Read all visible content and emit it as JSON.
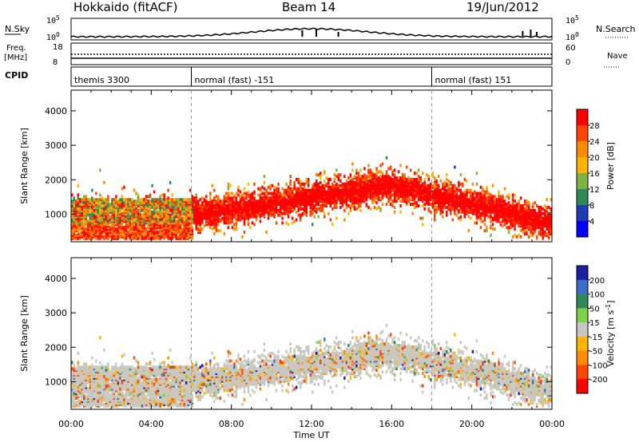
{
  "header": {
    "station": "Hokkaido (fitACF)",
    "beam": "Beam 14",
    "date": "19/Jun/2012"
  },
  "noise_panel": {
    "left_label": "N.Sky",
    "right_label": "N.Search",
    "y_ticks": [
      "10^5",
      "10^0"
    ]
  },
  "freq_panel": {
    "left_label": "Freq.",
    "left_unit": "[MHz]",
    "left_ticks": [
      "18",
      "8"
    ],
    "right_label": "Nave",
    "right_ticks": [
      "60",
      "0"
    ]
  },
  "cpid_panel": {
    "label": "CPID",
    "segments": [
      {
        "name": "themis 3300",
        "start": 0,
        "end": 6
      },
      {
        "name": "normal (fast) -151",
        "start": 6,
        "end": 18
      },
      {
        "name": "normal (fast) 151",
        "start": 18,
        "end": 24
      }
    ]
  },
  "chart_data": [
    {
      "type": "heatmap",
      "name": "power",
      "ylabel": "Slant Range [km]",
      "xlabel": "Time UT",
      "xlim": [
        0,
        24
      ],
      "ylim": [
        200,
        4600
      ],
      "x_ticks": [
        "00:00",
        "04:00",
        "08:00",
        "12:00",
        "16:00",
        "20:00",
        "00:00"
      ],
      "y_ticks": [
        1000,
        2000,
        3000,
        4000
      ],
      "colorbar": {
        "label": "Power [dB]",
        "ticks": [
          "28",
          "24",
          "20",
          "16",
          "12",
          "8",
          "4"
        ],
        "colors": [
          "#ff0000",
          "#ff4500",
          "#ff8c00",
          "#ffb400",
          "#7cb342",
          "#2e8b57",
          "#1e3cb4",
          "#0000ff"
        ]
      },
      "features": [
        {
          "t0": 0,
          "t1": 6,
          "r0": 300,
          "r1": 1400,
          "level": "mixed low-range"
        },
        {
          "t0": 6,
          "t1": 20,
          "r0": 800,
          "r1": 2200,
          "level": "strong arc peaking near 16 UT"
        },
        {
          "t0": 20,
          "t1": 24,
          "r0": 400,
          "r1": 1500,
          "level": "descending arc"
        }
      ]
    },
    {
      "type": "heatmap",
      "name": "velocity",
      "ylabel": "Slant Range [km]",
      "xlabel": "Time UT",
      "xlim": [
        0,
        24
      ],
      "ylim": [
        200,
        4600
      ],
      "x_ticks": [
        "00:00",
        "04:00",
        "08:00",
        "12:00",
        "16:00",
        "20:00",
        "00:00"
      ],
      "y_ticks": [
        1000,
        2000,
        3000,
        4000
      ],
      "colorbar": {
        "label": "Velocity [m s^-1]",
        "ticks": [
          "200",
          "100",
          "50",
          "15",
          "-15",
          "-50",
          "-100",
          "-200"
        ],
        "colors": [
          "#1e1ea0",
          "#3c6ec8",
          "#2e8b57",
          "#7cd24a",
          "#c8c8c0",
          "#ffb400",
          "#ff8c00",
          "#ff4500",
          "#ff0000"
        ]
      }
    }
  ],
  "axis": {
    "time_label": "Time UT"
  }
}
